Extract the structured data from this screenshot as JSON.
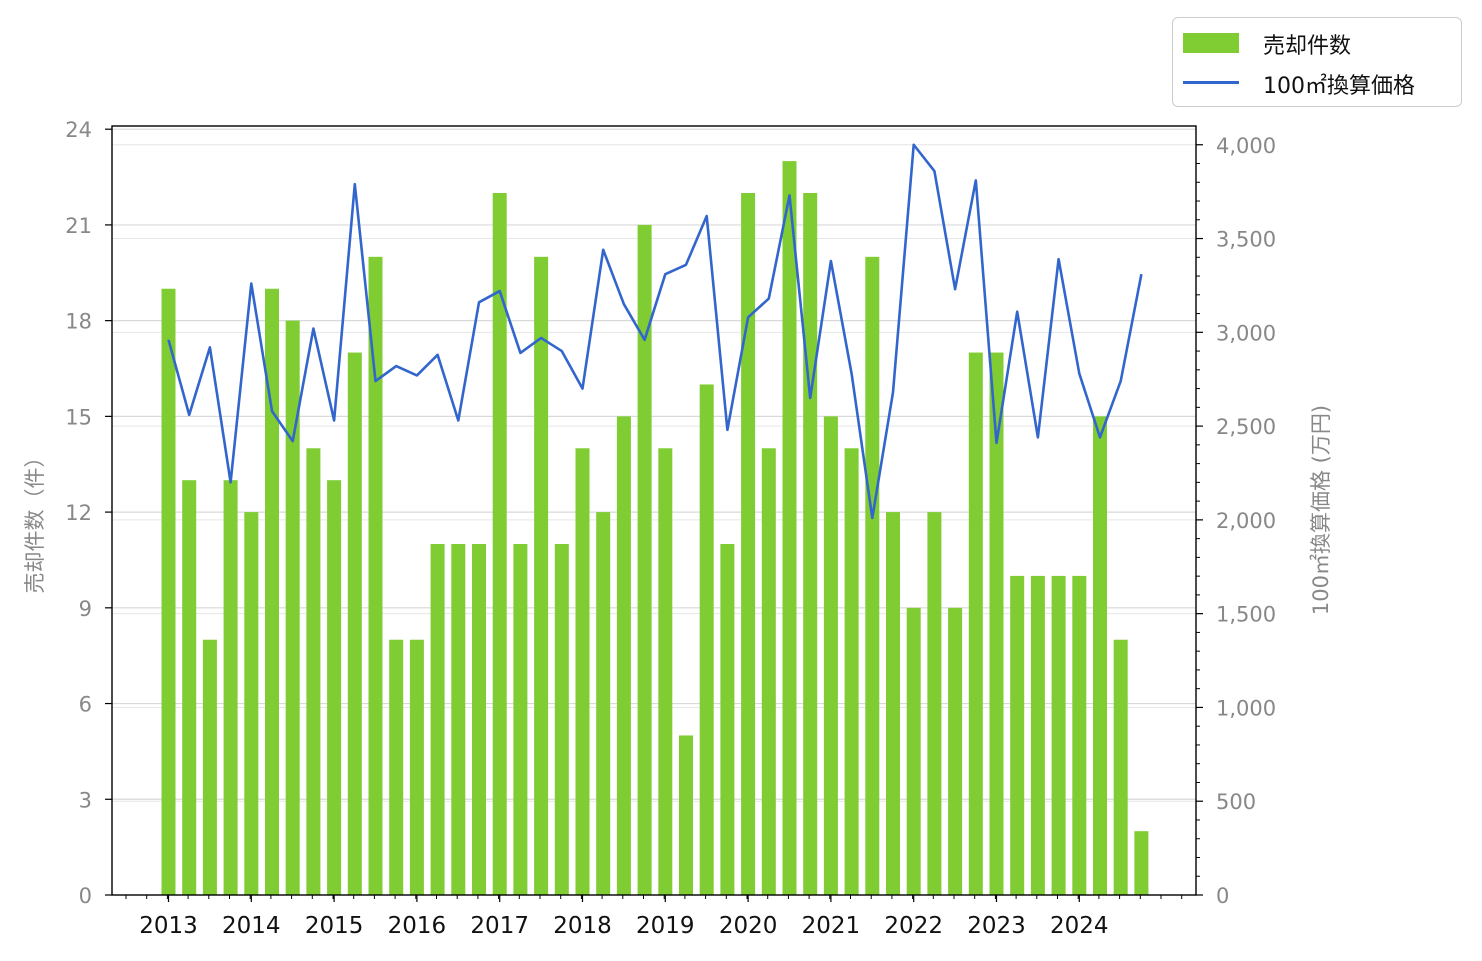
{
  "chart_data": {
    "type": "bar",
    "bar_series": {
      "name": "売却件数",
      "color": "#7fcc33",
      "values": [
        19,
        13,
        8,
        13,
        12,
        19,
        18,
        14,
        13,
        17,
        20,
        8,
        8,
        11,
        11,
        11,
        22,
        11,
        20,
        11,
        14,
        12,
        15,
        21,
        14,
        5,
        16,
        11,
        22,
        14,
        23,
        22,
        15,
        14,
        20,
        12,
        9,
        12,
        9,
        17,
        17,
        10,
        10,
        10,
        10,
        15,
        8,
        2
      ]
    },
    "line_series": {
      "name": "100㎡換算価格",
      "color": "#3366cc",
      "values": [
        2960,
        2560,
        2920,
        2200,
        3260,
        2580,
        2420,
        3020,
        2530,
        3790,
        2740,
        2820,
        2770,
        2880,
        2530,
        3160,
        3220,
        2890,
        2970,
        2900,
        2700,
        3440,
        3150,
        2960,
        3310,
        3360,
        3620,
        2480,
        3080,
        3180,
        3730,
        2650,
        3380,
        2780,
        2010,
        2680,
        4000,
        3860,
        3230,
        3810,
        2410,
        3110,
        2440,
        3390,
        2780,
        2440,
        2740,
        3310
      ]
    },
    "x_tick_labels": [
      "2013",
      "2014",
      "2015",
      "2016",
      "2017",
      "2018",
      "2019",
      "2020",
      "2021",
      "2022",
      "2023",
      "2024"
    ],
    "y_left": {
      "label": "売却件数（件）",
      "ticks": [
        "0",
        "3",
        "6",
        "9",
        "12",
        "15",
        "18",
        "21",
        "24"
      ],
      "range": [
        0,
        24.1
      ]
    },
    "y_right": {
      "label": "100㎡換算価格 (万円)",
      "ticks": [
        "0",
        "500",
        "1,000",
        "1,500",
        "2,000",
        "2,500",
        "3,000",
        "3,500",
        "4,000"
      ],
      "range": [
        0,
        4100
      ]
    },
    "grid": "horizontal",
    "legend_placement": "top-right, outside"
  },
  "legend": {
    "bar_label": "売却件数",
    "line_label": "100㎡換算価格",
    "bar_color": "#7fcc33",
    "line_color": "#3366cc"
  }
}
